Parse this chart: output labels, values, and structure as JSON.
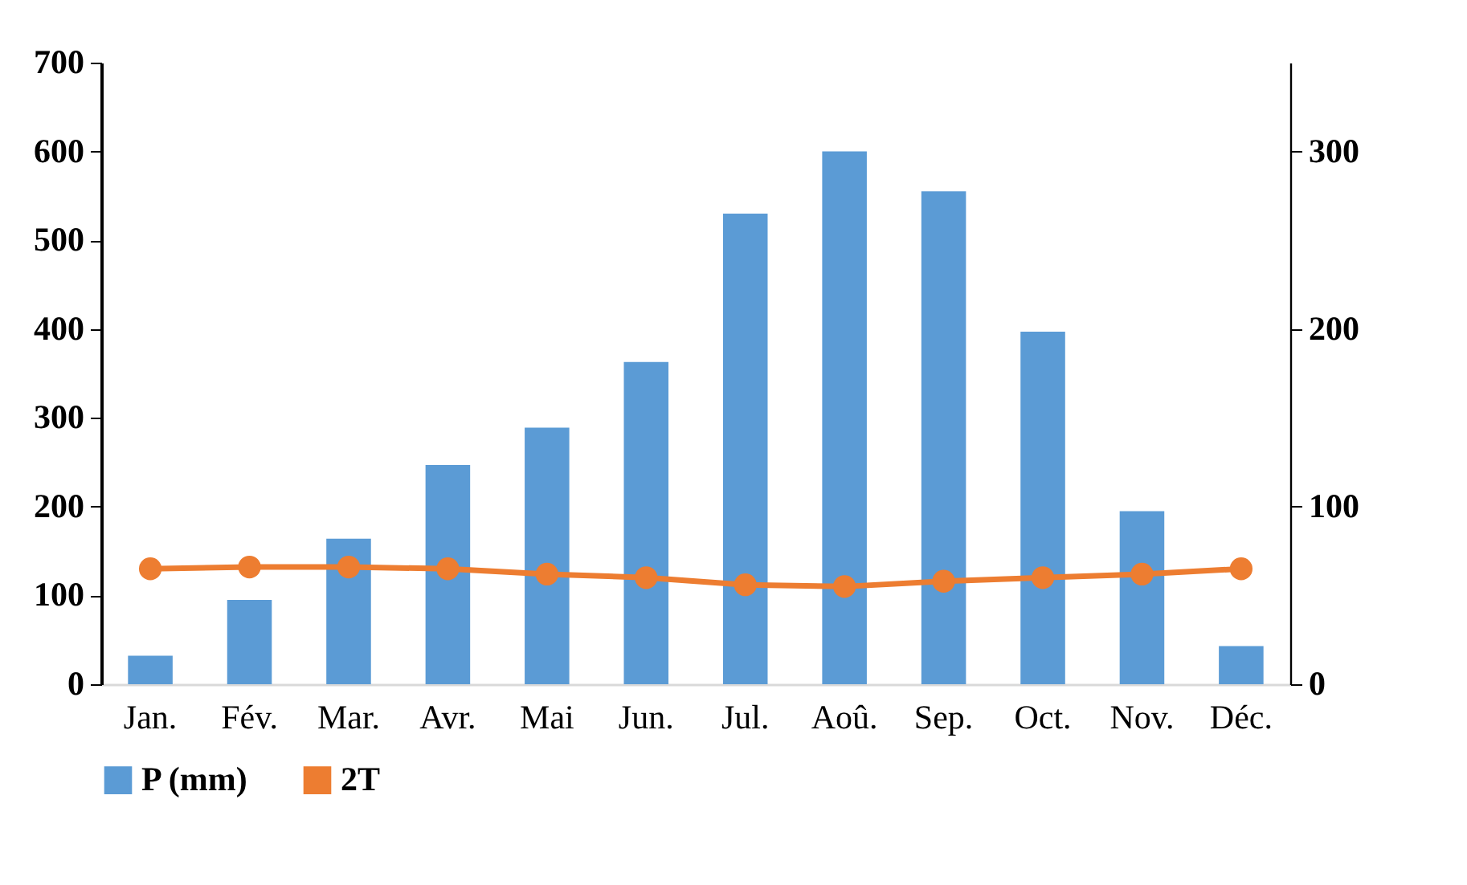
{
  "chart_data": {
    "type": "bar",
    "categories": [
      "Jan.",
      "Fév.",
      "Mar.",
      "Avr.",
      "Mai",
      "Jun.",
      "Jul.",
      "Aoû.",
      "Sep.",
      "Oct.",
      "Nov.",
      "Déc."
    ],
    "series": [
      {
        "name": "P (mm)",
        "color": "#5b9bd5",
        "values": [
          32,
          95,
          164,
          247,
          289,
          363,
          530,
          600,
          555,
          397,
          195,
          43
        ]
      },
      {
        "name": "2T",
        "type": "line",
        "axis": "y2",
        "color": "#ed7d31",
        "values": [
          65,
          66,
          66,
          65,
          62,
          60,
          56,
          55,
          58,
          60,
          62,
          65
        ]
      }
    ],
    "ylim": [
      0,
      700
    ],
    "yticks": [
      0,
      100,
      200,
      300,
      400,
      500,
      600,
      700
    ],
    "y2lim": [
      0,
      350
    ],
    "y2ticks": [
      0,
      100,
      200,
      300
    ],
    "grid": false,
    "legend": "bottom",
    "marker": "circle",
    "line_style": "solid"
  }
}
